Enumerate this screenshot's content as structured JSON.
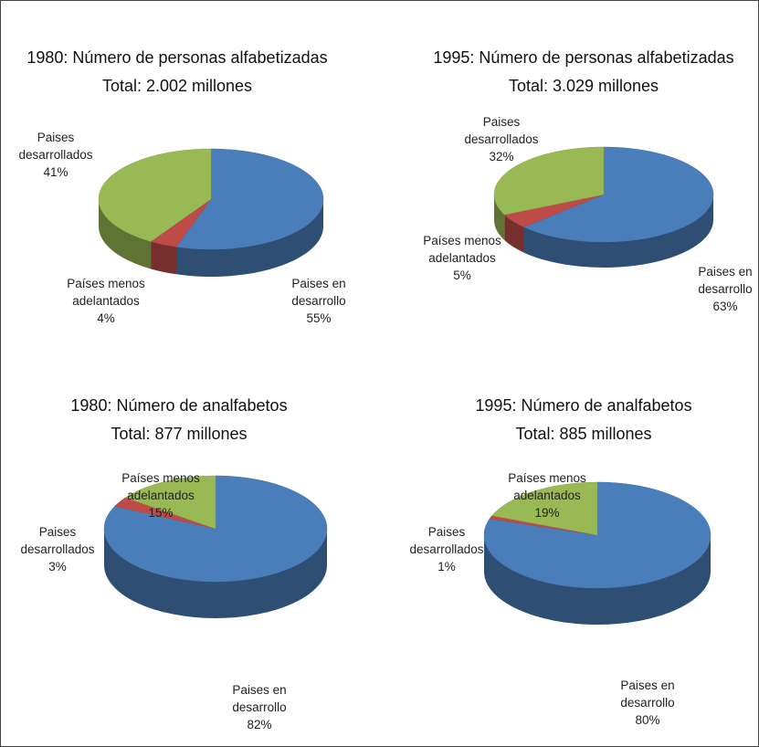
{
  "chart_data": [
    {
      "type": "pie",
      "title": "1980: Número de personas alfabetizadas",
      "subtitle": "Total: 2.002 millones",
      "categories": [
        "Paises en desarrollo",
        "Países menos adelantados",
        "Paises desarrollados"
      ],
      "values": [
        55,
        4,
        41
      ],
      "value_labels": [
        "55%",
        "4%",
        "41%"
      ],
      "colors": [
        "#4a7ebb",
        "#be4b48",
        "#98b954"
      ]
    },
    {
      "type": "pie",
      "title": "1995: Número de personas alfabetizadas",
      "subtitle": "Total: 3.029 millones",
      "categories": [
        "Paises en desarrollo",
        "Países menos adelantados",
        "Paises desarrollados"
      ],
      "values": [
        63,
        5,
        32
      ],
      "value_labels": [
        "63%",
        "5%",
        "32%"
      ],
      "colors": [
        "#4a7ebb",
        "#be4b48",
        "#98b954"
      ]
    },
    {
      "type": "pie",
      "title": "1980: Número de analfabetos",
      "subtitle": "Total: 877 millones",
      "categories": [
        "Paises en desarrollo",
        "Paises desarrollados",
        "Países menos adelantados"
      ],
      "values": [
        82,
        3,
        15
      ],
      "value_labels": [
        "82%",
        "3%",
        "15%"
      ],
      "colors": [
        "#4a7ebb",
        "#be4b48",
        "#98b954"
      ]
    },
    {
      "type": "pie",
      "title": "1995: Número de analfabetos",
      "subtitle": "Total: 885 millones",
      "categories": [
        "Paises en desarrollo",
        "Paises desarrollados",
        "Países menos adelantados"
      ],
      "values": [
        80,
        1,
        19
      ],
      "value_labels": [
        "80%",
        "1%",
        "19%"
      ],
      "colors": [
        "#4a7ebb",
        "#be4b48",
        "#98b954"
      ]
    }
  ]
}
